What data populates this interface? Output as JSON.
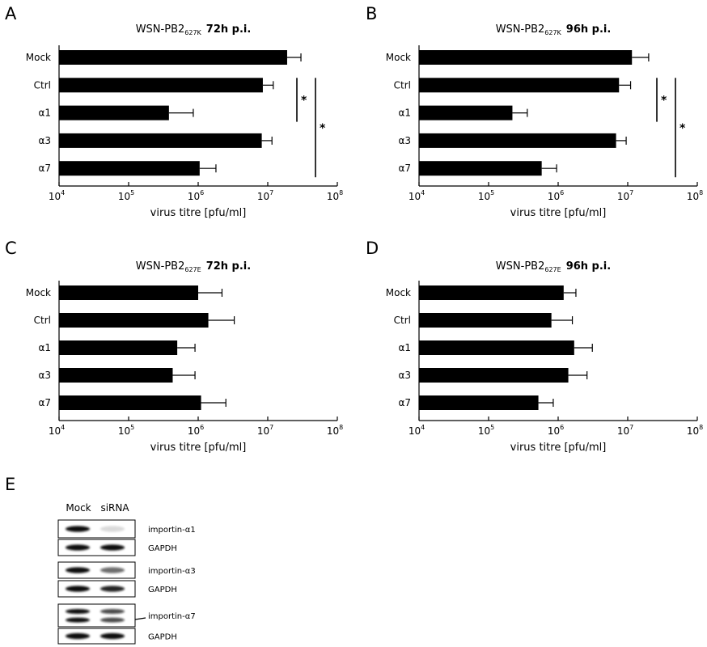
{
  "chart_data": [
    {
      "panel": "A",
      "type": "bar",
      "orientation": "horizontal",
      "title": {
        "virus": "WSN-PB2",
        "subscript": "627K",
        "time": "72h p.i."
      },
      "categories": [
        "Mock",
        "Ctrl",
        "α1",
        "α3",
        "α7"
      ],
      "values": [
        19000000,
        8500000,
        380000,
        8200000,
        1050000
      ],
      "error_upper": [
        30000000,
        12000000,
        850000,
        11500000,
        1800000
      ],
      "xlabel": "virus titre [pfu/ml]",
      "x_scale": "log",
      "xlim": [
        10000,
        100000000
      ],
      "xticks": [
        {
          "value": 10000,
          "base": "10",
          "exp": "4"
        },
        {
          "value": 100000,
          "base": "10",
          "exp": "5"
        },
        {
          "value": 1000000,
          "base": "10",
          "exp": "6"
        },
        {
          "value": 10000000,
          "base": "10",
          "exp": "7"
        },
        {
          "value": 100000000,
          "base": "10",
          "exp": "8"
        }
      ],
      "significance": [
        {
          "from": "Ctrl",
          "to": "α1",
          "label": "*"
        },
        {
          "from": "Ctrl",
          "to": "α7",
          "label": "*"
        }
      ]
    },
    {
      "panel": "B",
      "type": "bar",
      "orientation": "horizontal",
      "title": {
        "virus": "WSN-PB2",
        "subscript": "627K",
        "time": "96h p.i."
      },
      "categories": [
        "Mock",
        "Ctrl",
        "α1",
        "α3",
        "α7"
      ],
      "values": [
        11500000,
        7500000,
        220000,
        6800000,
        580000
      ],
      "error_upper": [
        20000000,
        11000000,
        360000,
        9500000,
        950000
      ],
      "xlabel": "virus titre [pfu/ml]",
      "x_scale": "log",
      "xlim": [
        10000,
        100000000
      ],
      "xticks": [
        {
          "value": 10000,
          "base": "10",
          "exp": "4"
        },
        {
          "value": 100000,
          "base": "10",
          "exp": "5"
        },
        {
          "value": 1000000,
          "base": "10",
          "exp": "6"
        },
        {
          "value": 10000000,
          "base": "10",
          "exp": "7"
        },
        {
          "value": 100000000,
          "base": "10",
          "exp": "8"
        }
      ],
      "significance": [
        {
          "from": "Ctrl",
          "to": "α1",
          "label": "*"
        },
        {
          "from": "Ctrl",
          "to": "α7",
          "label": "*"
        }
      ]
    },
    {
      "panel": "C",
      "type": "bar",
      "orientation": "horizontal",
      "title": {
        "virus": "WSN-PB2",
        "subscript": "627E",
        "time": "72h p.i."
      },
      "categories": [
        "Mock",
        "Ctrl",
        "α1",
        "α3",
        "α7"
      ],
      "values": [
        1000000,
        1400000,
        500000,
        430000,
        1100000
      ],
      "error_upper": [
        2200000,
        3300000,
        900000,
        900000,
        2500000
      ],
      "xlabel": "virus titre [pfu/ml]",
      "x_scale": "log",
      "xlim": [
        10000,
        100000000
      ],
      "xticks": [
        {
          "value": 10000,
          "base": "10",
          "exp": "4"
        },
        {
          "value": 100000,
          "base": "10",
          "exp": "5"
        },
        {
          "value": 1000000,
          "base": "10",
          "exp": "6"
        },
        {
          "value": 10000000,
          "base": "10",
          "exp": "7"
        },
        {
          "value": 100000000,
          "base": "10",
          "exp": "8"
        }
      ],
      "significance": []
    },
    {
      "panel": "D",
      "type": "bar",
      "orientation": "horizontal",
      "title": {
        "virus": "WSN-PB2",
        "subscript": "627E",
        "time": "96h p.i."
      },
      "categories": [
        "Mock",
        "Ctrl",
        "α1",
        "α3",
        "α7"
      ],
      "values": [
        1200000,
        800000,
        1700000,
        1400000,
        520000
      ],
      "error_upper": [
        1800000,
        1600000,
        3100000,
        2600000,
        850000
      ],
      "xlabel": "virus titre [pfu/ml]",
      "x_scale": "log",
      "xlim": [
        10000,
        100000000
      ],
      "xticks": [
        {
          "value": 10000,
          "base": "10",
          "exp": "4"
        },
        {
          "value": 100000,
          "base": "10",
          "exp": "5"
        },
        {
          "value": 1000000,
          "base": "10",
          "exp": "6"
        },
        {
          "value": 10000000,
          "base": "10",
          "exp": "7"
        },
        {
          "value": 100000000,
          "base": "10",
          "exp": "8"
        }
      ],
      "significance": []
    }
  ],
  "blot": {
    "panel": "E",
    "columns": [
      "Mock",
      "siRNA"
    ],
    "rows": [
      {
        "label": "importin-α1",
        "mock_bands": 1,
        "sirna_bands": 1,
        "sirna_intensity": 0.15
      },
      {
        "label": "GAPDH",
        "mock_bands": 1,
        "sirna_bands": 1,
        "sirna_intensity": 1.0
      },
      {
        "label": "importin-α3",
        "mock_bands": 1,
        "sirna_bands": 1,
        "sirna_intensity": 0.6
      },
      {
        "label": "GAPDH",
        "mock_bands": 1,
        "sirna_bands": 1,
        "sirna_intensity": 0.9
      },
      {
        "label": "importin-α7",
        "mock_bands": 2,
        "sirna_bands": 2,
        "sirna_intensity": 0.75
      },
      {
        "label": "GAPDH",
        "mock_bands": 1,
        "sirna_bands": 1,
        "sirna_intensity": 1.0
      }
    ]
  }
}
